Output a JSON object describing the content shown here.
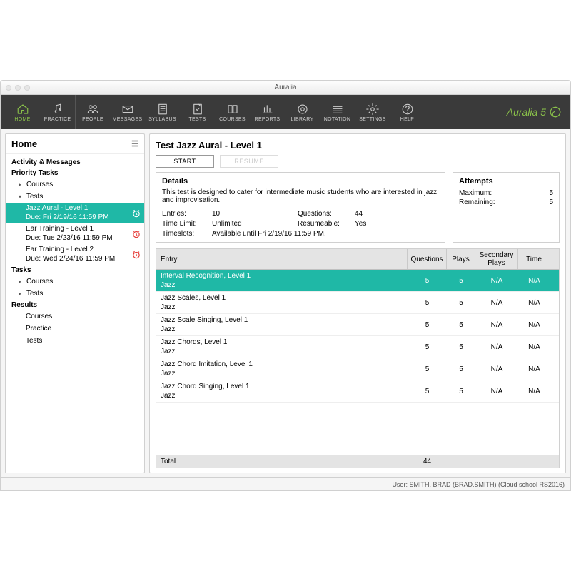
{
  "window": {
    "title": "Auralia"
  },
  "brand": {
    "text": "Auralia 5"
  },
  "colors": {
    "accent": "#1fb8a6",
    "brand": "#8bc34a",
    "toolbar_bg": "#3a3a3a",
    "alert": "#e53935"
  },
  "toolbar": [
    {
      "label": "HOME",
      "icon": "home",
      "active": true
    },
    {
      "label": "PRACTICE",
      "icon": "note"
    },
    {
      "label": "PEOPLE",
      "icon": "people",
      "sep": true
    },
    {
      "label": "MESSAGES",
      "icon": "mail"
    },
    {
      "label": "SYLLABUS",
      "icon": "syllabus"
    },
    {
      "label": "TESTS",
      "icon": "tests"
    },
    {
      "label": "COURSES",
      "icon": "courses"
    },
    {
      "label": "REPORTS",
      "icon": "reports"
    },
    {
      "label": "LIBRARY",
      "icon": "library"
    },
    {
      "label": "NOTATION",
      "icon": "notation"
    },
    {
      "label": "SETTINGS",
      "icon": "settings",
      "sep": true
    },
    {
      "label": "HELP",
      "icon": "help"
    }
  ],
  "sidebar": {
    "title": "Home",
    "section1": "Activity & Messages",
    "priority": "Priority Tasks",
    "courses": "Courses",
    "tests_label": "Tests",
    "tests": [
      {
        "name": "Jazz Aural - Level 1",
        "due": "Due: Fri 2/19/16 11:59 PM",
        "selected": true
      },
      {
        "name": "Ear Training - Level 1",
        "due": "Due: Tue 2/23/16 11:59 PM",
        "selected": false
      },
      {
        "name": "Ear Training - Level 2",
        "due": "Due: Wed 2/24/16 11:59 PM",
        "selected": false
      }
    ],
    "tasks_h": "Tasks",
    "tasks_courses": "Courses",
    "tasks_tests": "Tests",
    "results_h": "Results",
    "results": [
      "Courses",
      "Practice",
      "Tests"
    ]
  },
  "main": {
    "title": "Test Jazz Aural - Level 1",
    "start": "START",
    "resume": "RESUME",
    "details_h": "Details",
    "details_desc": "This test is designed to cater for intermediate music students who are interested in jazz and improvisation.",
    "labels": {
      "entries": "Entries:",
      "entries_v": "10",
      "questions": "Questions:",
      "questions_v": "44",
      "timelimit": "Time Limit:",
      "timelimit_v": "Unlimited",
      "resumeable": "Resumeable:",
      "resumeable_v": "Yes",
      "timeslots": "Timeslots:",
      "timeslots_v": "Available until Fri 2/19/16 11:59 PM."
    },
    "attempts_h": "Attempts",
    "attempts": {
      "max_l": "Maximum:",
      "max_v": "5",
      "rem_l": "Remaining:",
      "rem_v": "5"
    },
    "columns": {
      "entry": "Entry",
      "q": "Questions",
      "p": "Plays",
      "sp": "Secondary Plays",
      "t": "Time"
    },
    "rows": [
      {
        "name": "Interval Recognition, Level 1",
        "cat": "Jazz",
        "q": "5",
        "p": "5",
        "sp": "N/A",
        "t": "N/A",
        "selected": true
      },
      {
        "name": "Jazz Scales, Level 1",
        "cat": "Jazz",
        "q": "5",
        "p": "5",
        "sp": "N/A",
        "t": "N/A"
      },
      {
        "name": "Jazz Scale Singing, Level 1",
        "cat": "Jazz",
        "q": "5",
        "p": "5",
        "sp": "N/A",
        "t": "N/A"
      },
      {
        "name": "Jazz Chords, Level 1",
        "cat": "Jazz",
        "q": "5",
        "p": "5",
        "sp": "N/A",
        "t": "N/A"
      },
      {
        "name": "Jazz Chord Imitation, Level 1",
        "cat": "Jazz",
        "q": "5",
        "p": "5",
        "sp": "N/A",
        "t": "N/A"
      },
      {
        "name": "Jazz Chord Singing, Level 1",
        "cat": "Jazz",
        "q": "5",
        "p": "5",
        "sp": "N/A",
        "t": "N/A"
      }
    ],
    "total_l": "Total",
    "total_q": "44"
  },
  "status": "User: SMITH, BRAD (BRAD.SMITH) (Cloud school RS2016)"
}
